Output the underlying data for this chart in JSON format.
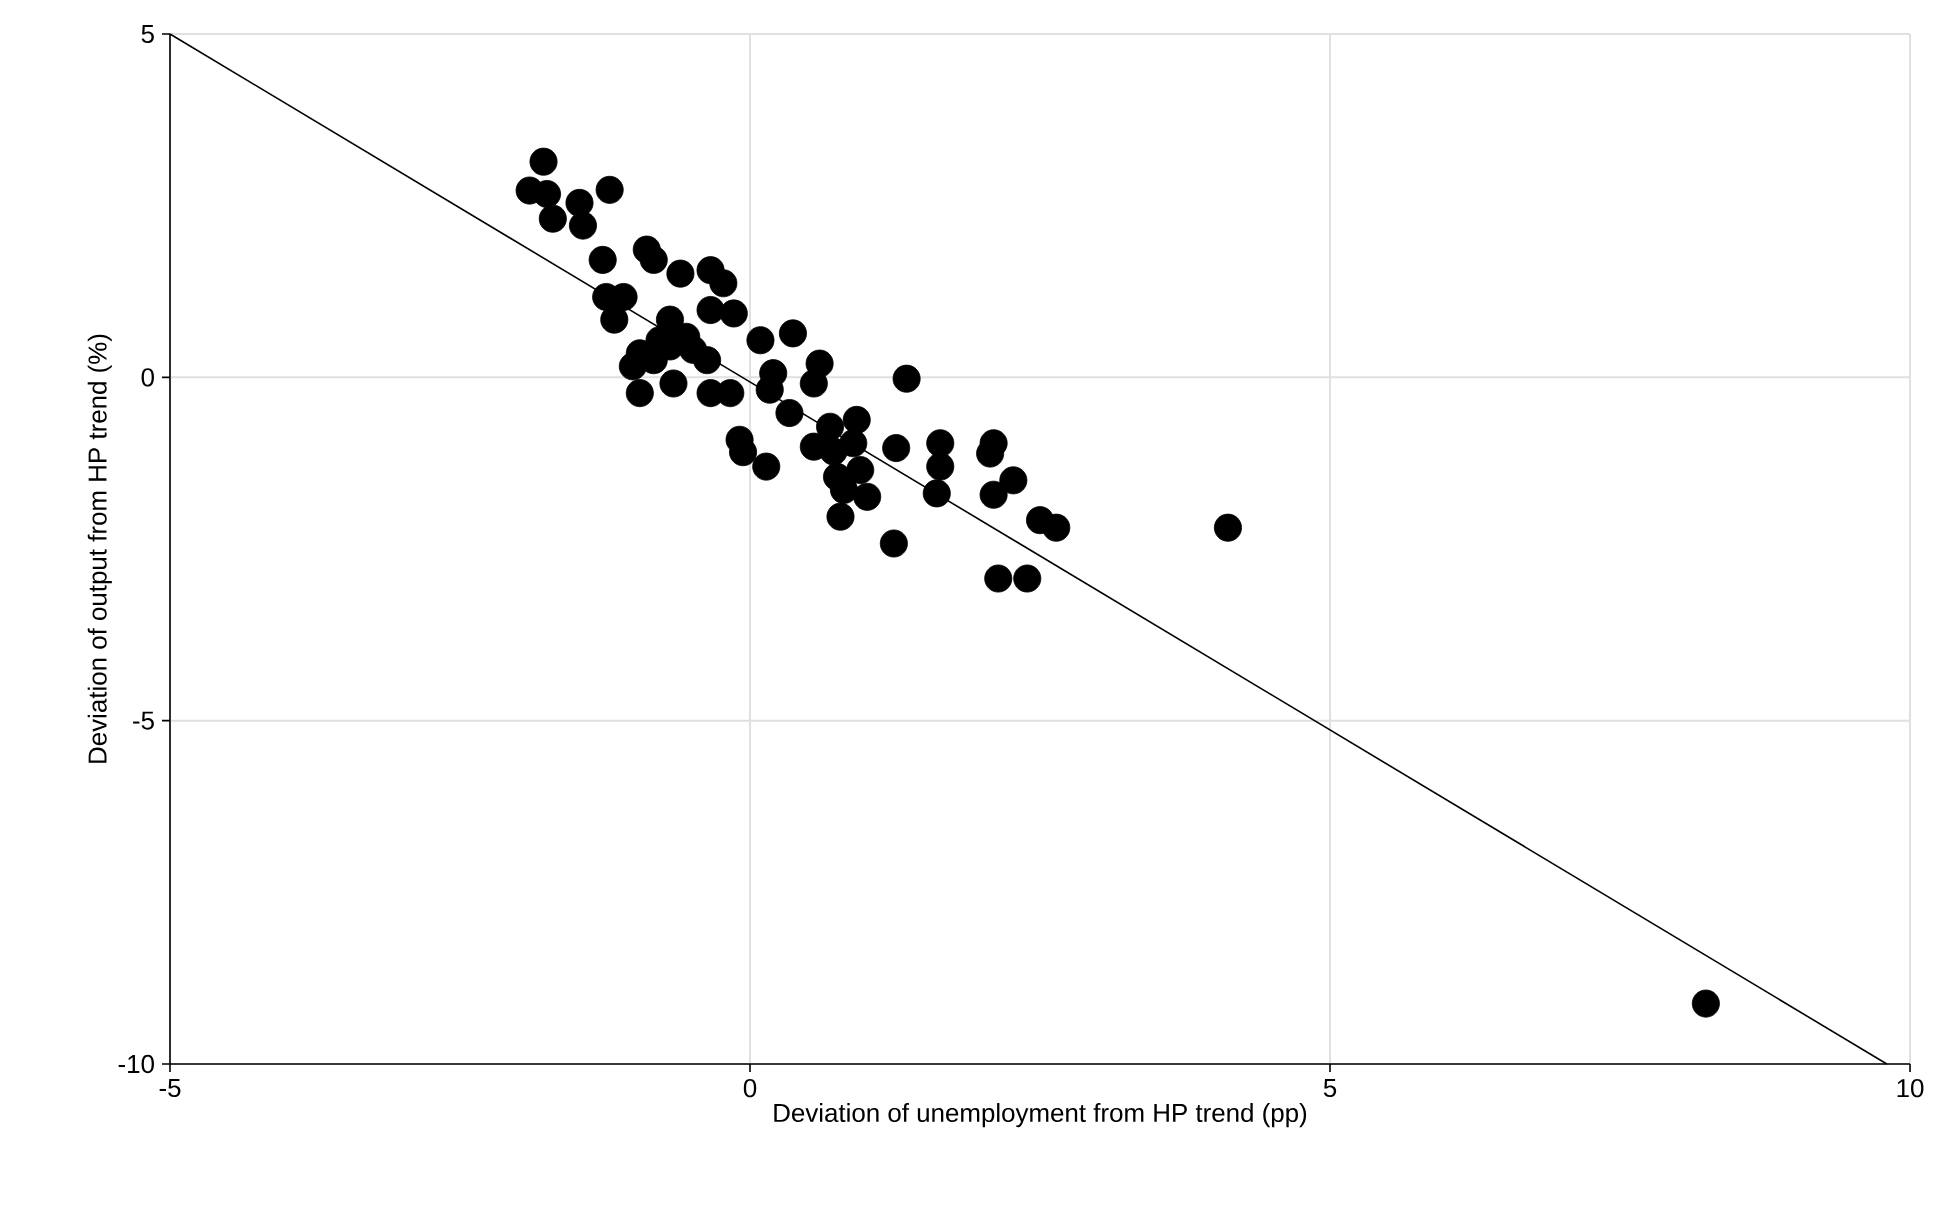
{
  "chart_data": {
    "type": "scatter",
    "xlabel": "Deviation of unemployment from HP trend (pp)",
    "ylabel": "Deviation of output from HP trend (%)",
    "xlim": [
      -5,
      10
    ],
    "ylim": [
      -10,
      5
    ],
    "xticks": [
      -5,
      0,
      5,
      10
    ],
    "yticks": [
      -10,
      -5,
      0,
      5
    ],
    "grid": true,
    "marker": "circle",
    "series": [
      {
        "color": "#000000",
        "x": [
          -1.78,
          -1.9,
          -1.75,
          -1.7,
          -1.47,
          -1.44,
          -1.21,
          -1.27,
          -0.89,
          -0.83,
          -0.6,
          -0.34,
          -0.23,
          -1.24,
          -1.09,
          -1.17,
          -0.95,
          -1.01,
          -0.95,
          -0.69,
          -0.69,
          -0.66,
          -0.49,
          -0.34,
          -0.17,
          -0.34,
          -0.14,
          0.09,
          0.37,
          0.2,
          0.34,
          -0.09,
          0.14,
          -0.78,
          -0.83,
          -0.55,
          0.55,
          -0.37,
          0.17,
          0.55,
          0.6,
          1.35,
          0.69,
          0.92,
          0.72,
          0.89,
          0.95,
          0.75,
          0.81,
          1.01,
          0.78,
          1.26,
          1.64,
          1.64,
          1.61,
          2.1,
          2.07,
          2.27,
          2.1,
          2.5,
          2.64,
          1.24,
          2.14,
          2.39,
          4.12,
          8.24,
          -0.06
        ],
        "values": [
          3.14,
          2.72,
          2.67,
          2.31,
          2.54,
          2.21,
          2.73,
          1.71,
          1.86,
          1.71,
          1.51,
          1.56,
          1.37,
          1.17,
          1.17,
          0.84,
          0.35,
          0.16,
          -0.23,
          0.84,
          0.45,
          -0.09,
          0.4,
          -0.23,
          -0.23,
          0.98,
          0.93,
          0.54,
          0.64,
          0.06,
          -0.52,
          -0.91,
          -1.3,
          0.54,
          0.25,
          0.59,
          -1.01,
          0.25,
          -0.18,
          -0.09,
          0.2,
          -0.02,
          -0.72,
          -0.62,
          -1.08,
          -0.96,
          -1.35,
          -1.45,
          -1.64,
          -1.74,
          -2.03,
          -1.03,
          -0.96,
          -1.3,
          -1.69,
          -0.96,
          -1.11,
          -1.5,
          -1.71,
          -2.08,
          -2.19,
          -2.42,
          -2.93,
          -2.93,
          -2.19,
          -9.12,
          -1.09
        ]
      },
      {
        "type": "line",
        "color": "#000000",
        "marker": "none",
        "x": [
          -5,
          9.8
        ],
        "values": [
          5,
          -10
        ]
      }
    ]
  }
}
